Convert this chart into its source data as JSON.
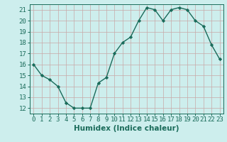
{
  "x": [
    0,
    1,
    2,
    3,
    4,
    5,
    6,
    7,
    8,
    9,
    10,
    11,
    12,
    13,
    14,
    15,
    16,
    17,
    18,
    19,
    20,
    21,
    22,
    23
  ],
  "y": [
    16,
    15,
    14.6,
    14,
    12.5,
    12,
    12,
    12,
    14.3,
    14.8,
    17,
    18,
    18.5,
    20,
    21.2,
    21,
    20,
    21,
    21.2,
    21,
    20,
    19.5,
    17.8,
    16.5
  ],
  "line_color": "#1a6b5a",
  "marker_color": "#1a6b5a",
  "bg_color": "#cdeeed",
  "grid_color": "#c8a8a8",
  "xlabel": "Humidex (Indice chaleur)",
  "xlim": [
    -0.5,
    23.5
  ],
  "ylim": [
    11.5,
    21.5
  ],
  "yticks": [
    12,
    13,
    14,
    15,
    16,
    17,
    18,
    19,
    20,
    21
  ],
  "xticks": [
    0,
    1,
    2,
    3,
    4,
    5,
    6,
    7,
    8,
    9,
    10,
    11,
    12,
    13,
    14,
    15,
    16,
    17,
    18,
    19,
    20,
    21,
    22,
    23
  ],
  "title_color": "#1a6b5a",
  "font_size_label": 7.5,
  "font_size_tick": 6.5
}
